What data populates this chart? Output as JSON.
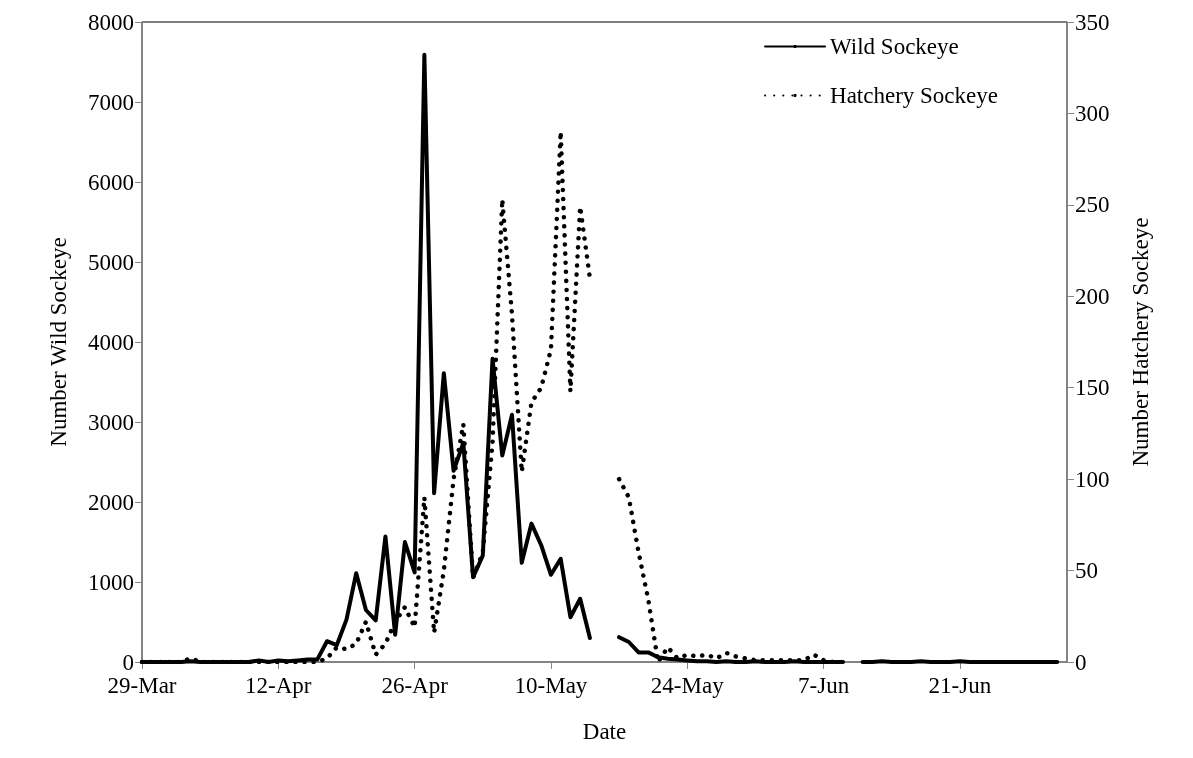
{
  "chart_data": {
    "type": "line",
    "xlabel": "Date",
    "ylabel": "Number Wild Sockeye",
    "y2label": "Number Hatchery Sockeye",
    "x": [
      "--03-29",
      "--03-30",
      "--03-31",
      "--04-01",
      "--04-02",
      "--04-03",
      "--04-04",
      "--04-05",
      "--04-06",
      "--04-07",
      "--04-08",
      "--04-09",
      "--04-10",
      "--04-11",
      "--04-12",
      "--04-13",
      "--04-14",
      "--04-15",
      "--04-16",
      "--04-17",
      "--04-18",
      "--04-19",
      "--04-20",
      "--04-21",
      "--04-22",
      "--04-23",
      "--04-24",
      "--04-25",
      "--04-26",
      "--04-27",
      "--04-28",
      "--04-29",
      "--04-30",
      "--05-01",
      "--05-02",
      "--05-03",
      "--05-04",
      "--05-05",
      "--05-06",
      "--05-07",
      "--05-08",
      "--05-09",
      "--05-10",
      "--05-11",
      "--05-12",
      "--05-13",
      "--05-14",
      "--05-15",
      "--05-16",
      "--05-17",
      "--05-18",
      "--05-19",
      "--05-20",
      "--05-21",
      "--05-22",
      "--05-23",
      "--05-24",
      "--05-25",
      "--05-26",
      "--05-27",
      "--05-28",
      "--05-29",
      "--05-30",
      "--05-31",
      "--06-01",
      "--06-02",
      "--06-03",
      "--06-04",
      "--06-05",
      "--06-06",
      "--06-07",
      "--06-08",
      "--06-09",
      "--06-10",
      "--06-11",
      "--06-12",
      "--06-13",
      "--06-14",
      "--06-15",
      "--06-16",
      "--06-17",
      "--06-18",
      "--06-19",
      "--06-20",
      "--06-21",
      "--06-22",
      "--06-23",
      "--06-24",
      "--06-25",
      "--06-26",
      "--06-27",
      "--06-28",
      "--06-29",
      "--06-30",
      "--07-01"
    ],
    "series": [
      {
        "name": "Wild Sockeye",
        "color": "#000000",
        "line_style": "solid",
        "values": [
          0,
          0,
          0,
          0,
          0,
          10,
          0,
          0,
          0,
          0,
          0,
          0,
          20,
          0,
          20,
          10,
          20,
          30,
          30,
          260,
          210,
          530,
          1110,
          650,
          520,
          1570,
          340,
          1500,
          1120,
          7590,
          2110,
          3610,
          2390,
          2740,
          1060,
          1330,
          3790,
          2580,
          3090,
          1240,
          1730,
          1460,
          1090,
          1290,
          560,
          790,
          300,
          null,
          null,
          310,
          250,
          120,
          120,
          60,
          40,
          30,
          20,
          10,
          10,
          0,
          10,
          0,
          0,
          10,
          0,
          0,
          0,
          10,
          0,
          0,
          0,
          0,
          0,
          null,
          0,
          0,
          10,
          0,
          0,
          0,
          10,
          0,
          0,
          0,
          10,
          0,
          0,
          0,
          0,
          0,
          0,
          0,
          0,
          0,
          0
        ]
      },
      {
        "name": "Hatchery Sockeye",
        "color": "#000000",
        "line_style": "dotted",
        "axis": "y2",
        "values": [
          0,
          0,
          0,
          0,
          0,
          2,
          0,
          0,
          0,
          0,
          0,
          0,
          0,
          0,
          0,
          0,
          0,
          0,
          0,
          2,
          8,
          7,
          10,
          22,
          4,
          10,
          22,
          30,
          19,
          90,
          16,
          50,
          100,
          130,
          46,
          60,
          120,
          253,
          190,
          104,
          142,
          150,
          171,
          290,
          148,
          249,
          210,
          null,
          null,
          100,
          90,
          60,
          34,
          0,
          8,
          2,
          4,
          3,
          4,
          2,
          5,
          3,
          2,
          1,
          1,
          1,
          1,
          1,
          1,
          4,
          1,
          0,
          0,
          null,
          null,
          null,
          null,
          null,
          null,
          null,
          null,
          null,
          null,
          null,
          null,
          null,
          null,
          null,
          null,
          null,
          null,
          null,
          null,
          null,
          null
        ]
      }
    ],
    "xlim": [
      "--03-29",
      "--07-02"
    ],
    "xticks": [
      {
        "value": "--03-29",
        "label": "29-Mar"
      },
      {
        "value": "--04-12",
        "label": "12-Apr"
      },
      {
        "value": "--04-26",
        "label": "26-Apr"
      },
      {
        "value": "--05-10",
        "label": "10-May"
      },
      {
        "value": "--05-24",
        "label": "24-May"
      },
      {
        "value": "--06-07",
        "label": "7-Jun"
      },
      {
        "value": "--06-21",
        "label": "21-Jun"
      }
    ],
    "ylim": [
      0,
      8000
    ],
    "yticks": [
      0,
      1000,
      2000,
      3000,
      4000,
      5000,
      6000,
      7000,
      8000
    ],
    "y2lim": [
      0,
      350
    ],
    "y2ticks": [
      0,
      50,
      100,
      150,
      200,
      250,
      300,
      350
    ],
    "legend": "top right",
    "marker": "none",
    "grid": false
  }
}
